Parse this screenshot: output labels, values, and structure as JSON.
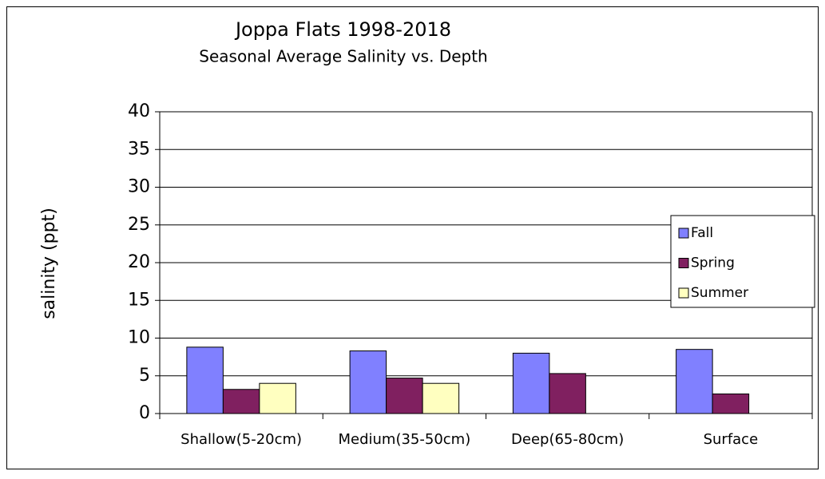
{
  "chart_data": {
    "type": "bar",
    "title": "Joppa Flats 1998-2018",
    "subtitle": "Seasonal Average Salinity vs. Depth",
    "y_label": "salinity (ppt)",
    "categories": [
      "Shallow(5-20cm)",
      "Medium(35-50cm)",
      "Deep(65-80cm)",
      "Surface"
    ],
    "series": [
      {
        "name": "Fall",
        "color": "#8080ff",
        "values": [
          8.8,
          8.3,
          8.0,
          8.5
        ]
      },
      {
        "name": "Spring",
        "color": "#802060",
        "values": [
          3.2,
          4.7,
          5.3,
          2.6
        ]
      },
      {
        "name": "Summer",
        "color": "#ffffc0",
        "values": [
          4.0,
          4.0,
          null,
          null
        ]
      }
    ],
    "ylim": [
      0,
      40
    ],
    "yticks": [
      0,
      5,
      10,
      15,
      20,
      25,
      30,
      35,
      40
    ],
    "grid": true,
    "legend": "right"
  }
}
